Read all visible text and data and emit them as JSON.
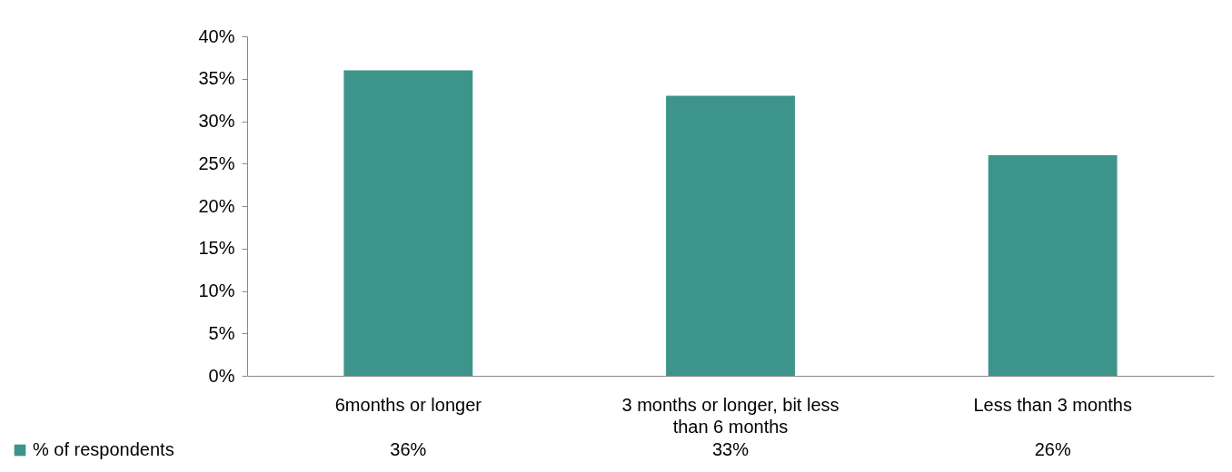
{
  "chart_data": {
    "type": "bar",
    "categories": [
      "6months or longer",
      "3 months or longer, bit less than 6 months",
      "Less than 3 months"
    ],
    "series": [
      {
        "name": "% of respondents",
        "color": "#3d948a",
        "values": [
          36,
          33,
          26
        ],
        "value_labels": [
          "36%",
          "33%",
          "26%"
        ]
      }
    ],
    "ylim": [
      0,
      40
    ],
    "yticks": [
      {
        "value": 0,
        "label": "0%"
      },
      {
        "value": 5,
        "label": "5%"
      },
      {
        "value": 10,
        "label": "10%"
      },
      {
        "value": 15,
        "label": "15%"
      },
      {
        "value": 20,
        "label": "20%"
      },
      {
        "value": 25,
        "label": "25%"
      },
      {
        "value": 30,
        "label": "30%"
      },
      {
        "value": 35,
        "label": "35%"
      },
      {
        "value": 40,
        "label": "40%"
      }
    ],
    "grid": false,
    "legend": "bottom left"
  }
}
